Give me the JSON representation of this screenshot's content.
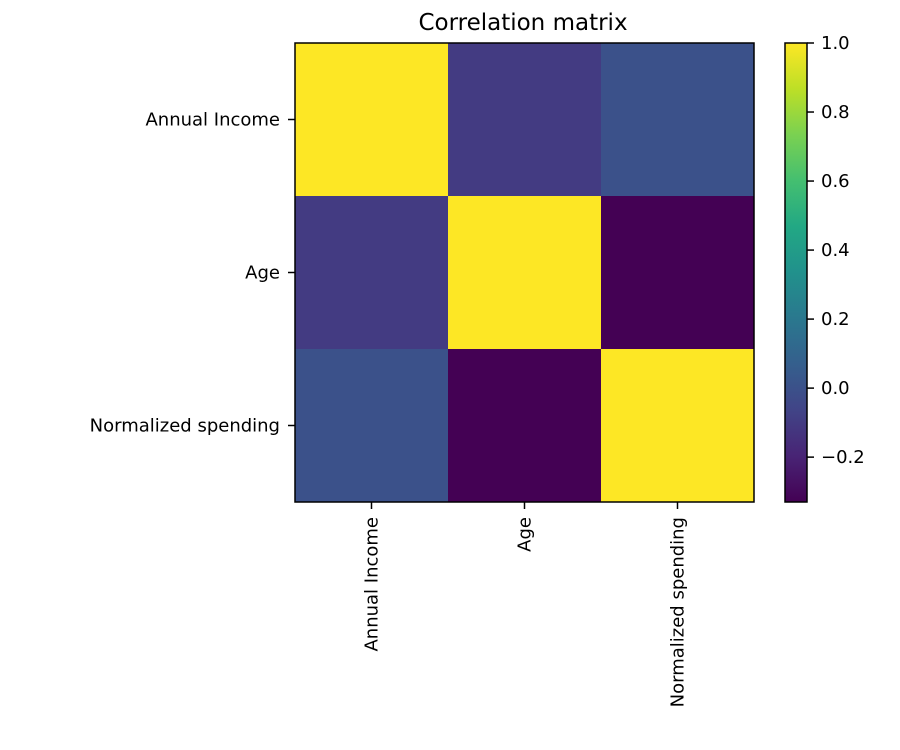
{
  "chart_data": {
    "type": "heatmap",
    "title": "Correlation matrix",
    "x_labels": [
      "Annual Income",
      "Age",
      "Normalized spending"
    ],
    "y_labels": [
      "Annual Income",
      "Age",
      "Normalized spending"
    ],
    "values": [
      [
        1.0,
        -0.1,
        0.0
      ],
      [
        -0.1,
        1.0,
        -0.33
      ],
      [
        0.0,
        -0.33,
        1.0
      ]
    ],
    "colormap": "viridis",
    "colorbar": {
      "min": -0.33,
      "max": 1.0,
      "ticks": [
        1.0,
        0.8,
        0.6,
        0.4,
        0.2,
        0.0,
        -0.2
      ],
      "tick_labels": [
        "1.0",
        "0.8",
        "0.6",
        "0.4",
        "0.2",
        "0.0",
        "−0.2"
      ]
    },
    "grid": false
  }
}
